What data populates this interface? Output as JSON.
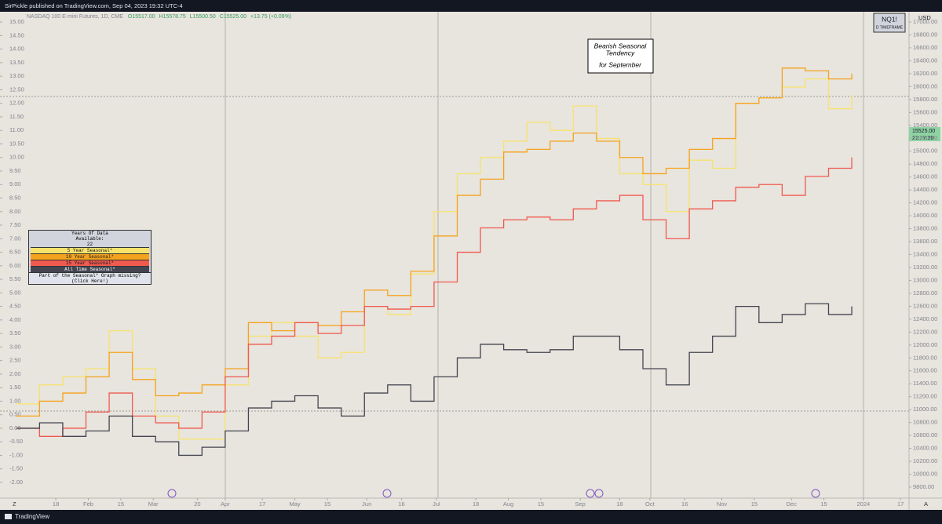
{
  "header": {
    "publisher": "SirPickle published on TradingView.com, Sep 04, 2023 19:32 UTC-4"
  },
  "footer": {
    "brand": "TradingView"
  },
  "chart_data": {
    "type": "line",
    "step": true,
    "symbol": "NASDAQ 100 E-mini Futures, 1D, CME",
    "ohlc": [
      "O15517.00",
      "H15578.75",
      "L15500.50",
      "C15525.00",
      "+13.75 (+0.09%)"
    ],
    "badge": {
      "symbol": "NQ1!",
      "timeframe": "D TIMEFRAME"
    },
    "currency": "USD",
    "last_price": {
      "price": "15525.00",
      "countdown": "21:27:20"
    },
    "annotation": [
      "Bearish Seasonal",
      "Tendency",
      "for September"
    ],
    "legend_table": {
      "title": [
        "Years Of Data",
        "Available:",
        "22"
      ],
      "footer": "Part of the Seasonal* Graph missing? (Click Here!)"
    },
    "corner_labels": [
      "Z",
      "A"
    ],
    "x": [
      0,
      10,
      20,
      30,
      40,
      50,
      60,
      70,
      80,
      90,
      100,
      110,
      120,
      130,
      140,
      150,
      160,
      170,
      180,
      190,
      200,
      210,
      220,
      230,
      240,
      250,
      260,
      270,
      280,
      290,
      300,
      310,
      320,
      330,
      340,
      350,
      360
    ],
    "xlim": [
      -4,
      384
    ],
    "xticks": [
      {
        "value": 17,
        "label": "18"
      },
      {
        "value": 31,
        "label": "Feb"
      },
      {
        "value": 45,
        "label": "15"
      },
      {
        "value": 59,
        "label": "Mar"
      },
      {
        "value": 78,
        "label": "20"
      },
      {
        "value": 90,
        "label": "Apr"
      },
      {
        "value": 106,
        "label": "17"
      },
      {
        "value": 120,
        "label": "May"
      },
      {
        "value": 134,
        "label": "15"
      },
      {
        "value": 151,
        "label": "Jun"
      },
      {
        "value": 166,
        "label": "16"
      },
      {
        "value": 181,
        "label": "Jul"
      },
      {
        "value": 198,
        "label": "18"
      },
      {
        "value": 212,
        "label": "Aug"
      },
      {
        "value": 226,
        "label": "15"
      },
      {
        "value": 243,
        "label": "Sep"
      },
      {
        "value": 260,
        "label": "18"
      },
      {
        "value": 273,
        "label": "Oct"
      },
      {
        "value": 288,
        "label": "16"
      },
      {
        "value": 304,
        "label": "Nov"
      },
      {
        "value": 318,
        "label": "15"
      },
      {
        "value": 334,
        "label": "Dec"
      },
      {
        "value": 348,
        "label": "15"
      },
      {
        "value": 365,
        "label": "2024"
      },
      {
        "value": 381,
        "label": "17"
      }
    ],
    "ylim": [
      -2.58,
      15.38
    ],
    "yticks": [
      {
        "value": -2,
        "label": "-2.00"
      },
      {
        "value": -1.5,
        "label": "-1.50"
      },
      {
        "value": -1,
        "label": "-1.00"
      },
      {
        "value": -0.5,
        "label": "-0.50"
      },
      {
        "value": 0,
        "label": "0.00"
      },
      {
        "value": 0.5,
        "label": "0.50"
      },
      {
        "value": 1,
        "label": "1.00"
      },
      {
        "value": 1.5,
        "label": "1.50"
      },
      {
        "value": 2,
        "label": "2.00"
      },
      {
        "value": 2.5,
        "label": "2.50"
      },
      {
        "value": 3,
        "label": "3.00"
      },
      {
        "value": 3.5,
        "label": "3.50"
      },
      {
        "value": 4,
        "label": "4.00"
      },
      {
        "value": 4.5,
        "label": "4.50"
      },
      {
        "value": 5,
        "label": "5.00"
      },
      {
        "value": 5.5,
        "label": "5.50"
      },
      {
        "value": 6,
        "label": "6.00"
      },
      {
        "value": 6.5,
        "label": "6.50"
      },
      {
        "value": 7,
        "label": "7.00"
      },
      {
        "value": 7.5,
        "label": "7.50"
      },
      {
        "value": 8,
        "label": "8.00"
      },
      {
        "value": 8.5,
        "label": "8.50"
      },
      {
        "value": 9,
        "label": "9.00"
      },
      {
        "value": 9.5,
        "label": "9.50"
      },
      {
        "value": 10,
        "label": "10.00"
      },
      {
        "value": 10.5,
        "label": "10.50"
      },
      {
        "value": 11,
        "label": "11.00"
      },
      {
        "value": 11.5,
        "label": "11.50"
      },
      {
        "value": 12,
        "label": "12.00"
      },
      {
        "value": 12.5,
        "label": "12.50"
      },
      {
        "value": 13,
        "label": "13.00"
      },
      {
        "value": 13.5,
        "label": "13.50"
      },
      {
        "value": 14,
        "label": "14.00"
      },
      {
        "value": 14.5,
        "label": "14.50"
      },
      {
        "value": 15,
        "label": "15.00"
      }
    ],
    "y2lim": [
      9630,
      17158
    ],
    "y2ticks": [
      {
        "value": 9800,
        "label": "9800.00"
      },
      {
        "value": 10000,
        "label": "10000.00"
      },
      {
        "value": 10200,
        "label": "10200.00"
      },
      {
        "value": 10400,
        "label": "10400.00"
      },
      {
        "value": 10600,
        "label": "10600.00"
      },
      {
        "value": 10800,
        "label": "10800.00"
      },
      {
        "value": 11000,
        "label": "11000.00"
      },
      {
        "value": 11200,
        "label": "11200.00"
      },
      {
        "value": 11400,
        "label": "11400.00"
      },
      {
        "value": 11600,
        "label": "11600.00"
      },
      {
        "value": 11800,
        "label": "11800.00"
      },
      {
        "value": 12000,
        "label": "12000.00"
      },
      {
        "value": 12200,
        "label": "12200.00"
      },
      {
        "value": 12400,
        "label": "12400.00"
      },
      {
        "value": 12600,
        "label": "12600.00"
      },
      {
        "value": 12800,
        "label": "12800.00"
      },
      {
        "value": 13000,
        "label": "13000.00"
      },
      {
        "value": 13200,
        "label": "13200.00"
      },
      {
        "value": 13400,
        "label": "13400.00"
      },
      {
        "value": 13600,
        "label": "13600.00"
      },
      {
        "value": 13800,
        "label": "13800.00"
      },
      {
        "value": 14000,
        "label": "14000.00"
      },
      {
        "value": 14200,
        "label": "14200.00"
      },
      {
        "value": 14400,
        "label": "14400.00"
      },
      {
        "value": 14600,
        "label": "14600.00"
      },
      {
        "value": 14800,
        "label": "14800.00"
      },
      {
        "value": 15000,
        "label": "15000.00"
      },
      {
        "value": 15200,
        "label": "15200.00"
      },
      {
        "value": 15400,
        "label": "15400.00"
      },
      {
        "value": 15600,
        "label": "15600.00"
      },
      {
        "value": 15800,
        "label": "15800.00"
      },
      {
        "value": 16000,
        "label": "16000.00"
      },
      {
        "value": 16200,
        "label": "16200.00"
      },
      {
        "value": 16400,
        "label": "16400.00"
      },
      {
        "value": 16600,
        "label": "16600.00"
      },
      {
        "value": 16800,
        "label": "16800.00"
      },
      {
        "value": 17000,
        "label": "17000.00"
      }
    ],
    "series": [
      {
        "name": "5 Year Seasonal*",
        "color": "#f7e36b",
        "values": [
          0.9,
          1.6,
          1.9,
          2.2,
          3.6,
          2.2,
          0.45,
          -0.4,
          -0.4,
          1.6,
          3.4,
          3.9,
          3.4,
          2.6,
          2.8,
          4.5,
          4.2,
          5.7,
          8.0,
          9.4,
          10.0,
          10.6,
          11.3,
          11.0,
          11.9,
          10.7,
          9.4,
          9.0,
          8.0,
          9.9,
          9.6,
          12.0,
          12.2,
          12.6,
          12.9,
          11.8,
          12.3
        ]
      },
      {
        "name": "10 Year Seasonal*",
        "color": "#f5a31d",
        "values": [
          0.45,
          1.0,
          1.3,
          1.9,
          2.8,
          1.8,
          1.2,
          1.3,
          1.6,
          2.2,
          3.9,
          3.6,
          3.9,
          3.8,
          4.3,
          5.1,
          4.9,
          5.8,
          7.1,
          8.6,
          9.2,
          10.2,
          10.3,
          10.6,
          10.9,
          10.6,
          10.0,
          9.4,
          9.6,
          10.3,
          10.7,
          12.0,
          12.2,
          13.3,
          13.2,
          12.9,
          13.1
        ]
      },
      {
        "name": "15 Year Seasonal*",
        "color": "#f05a4f",
        "values": [
          0,
          -0.3,
          0,
          0.6,
          1.3,
          0.45,
          0.2,
          0,
          0.6,
          1.9,
          3.1,
          3.4,
          3.9,
          3.5,
          3.8,
          4.5,
          4.4,
          4.5,
          5.4,
          6.5,
          7.4,
          7.7,
          7.8,
          7.7,
          8.1,
          8.4,
          8.6,
          7.7,
          7.0,
          8.1,
          8.4,
          8.9,
          9.0,
          8.6,
          9.3,
          9.6,
          10.0
        ]
      },
      {
        "name": "All Time Seasonal*",
        "color": "#434651",
        "values": [
          0,
          0.2,
          -0.3,
          -0.1,
          0.45,
          -0.3,
          -0.5,
          -1.0,
          -0.7,
          -0.1,
          0.75,
          1.0,
          1.2,
          0.75,
          0.45,
          1.3,
          1.6,
          1.0,
          1.9,
          2.6,
          3.1,
          2.9,
          2.8,
          2.9,
          3.4,
          3.4,
          2.9,
          2.2,
          1.6,
          2.8,
          3.4,
          4.5,
          3.9,
          4.2,
          4.6,
          4.2,
          4.5
        ]
      }
    ]
  }
}
